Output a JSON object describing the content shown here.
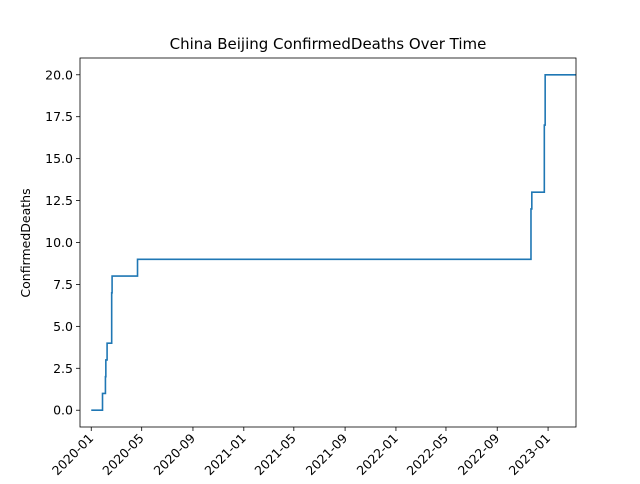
{
  "chart_data": {
    "type": "line",
    "title": "China Beijing ConfirmedDeaths Over Time",
    "xlabel": "",
    "ylabel": "ConfirmedDeaths",
    "x_ticks": [
      "2020-01",
      "2020-05",
      "2020-09",
      "2021-01",
      "2021-05",
      "2021-09",
      "2022-01",
      "2022-05",
      "2022-09",
      "2023-01"
    ],
    "y_ticks": [
      "0.0",
      "2.5",
      "5.0",
      "7.5",
      "10.0",
      "12.5",
      "15.0",
      "17.5",
      "20.0"
    ],
    "xlim": [
      "2019-12-05",
      "2023-03-09"
    ],
    "ylim": [
      -1.0,
      21.0
    ],
    "grid": false,
    "line_color": "#1f77b4",
    "series": [
      {
        "step": "post",
        "points": [
          [
            "2020-01-01",
            0
          ],
          [
            "2020-01-27",
            0
          ],
          [
            "2020-01-28",
            1
          ],
          [
            "2020-02-03",
            1
          ],
          [
            "2020-02-04",
            2
          ],
          [
            "2020-02-05",
            3
          ],
          [
            "2020-02-08",
            4
          ],
          [
            "2020-02-18",
            4
          ],
          [
            "2020-02-19",
            7
          ],
          [
            "2020-02-20",
            8
          ],
          [
            "2020-04-20",
            8
          ],
          [
            "2020-04-21",
            9
          ],
          [
            "2022-11-20",
            9
          ],
          [
            "2022-11-21",
            12
          ],
          [
            "2022-11-23",
            13
          ],
          [
            "2022-12-22",
            13
          ],
          [
            "2022-12-23",
            17
          ],
          [
            "2022-12-25",
            20
          ],
          [
            "2023-03-09",
            20
          ]
        ]
      }
    ]
  }
}
